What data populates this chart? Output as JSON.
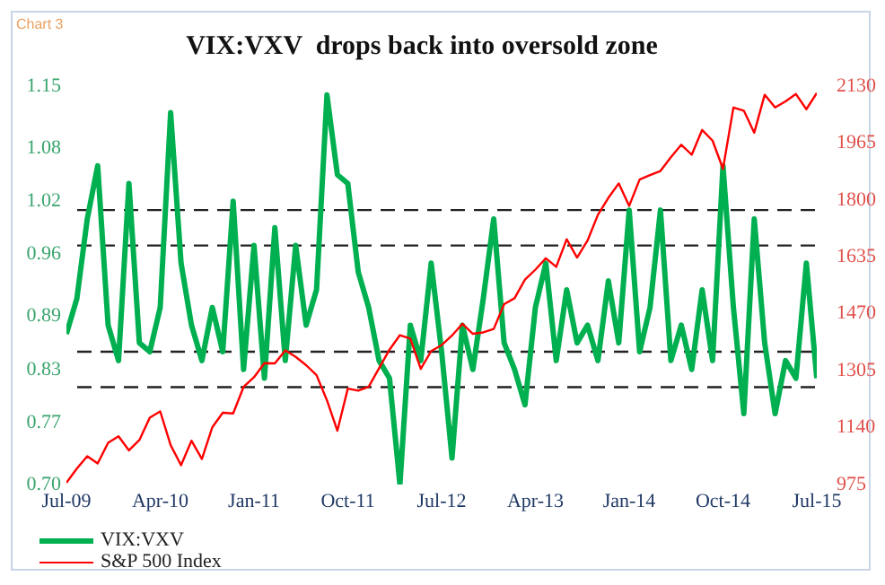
{
  "chart_data": {
    "type": "line",
    "title": "VIX:VXV  drops back into oversold zone",
    "annotations": [
      "Chart 3"
    ],
    "x": [
      "2009-07",
      "2009-08",
      "2009-09",
      "2009-10",
      "2009-11",
      "2009-12",
      "2010-01",
      "2010-02",
      "2010-03",
      "2010-04",
      "2010-05",
      "2010-06",
      "2010-07",
      "2010-08",
      "2010-09",
      "2010-10",
      "2010-11",
      "2010-12",
      "2011-01",
      "2011-02",
      "2011-03",
      "2011-04",
      "2011-05",
      "2011-06",
      "2011-07",
      "2011-08",
      "2011-09",
      "2011-10",
      "2011-11",
      "2011-12",
      "2012-01",
      "2012-02",
      "2012-03",
      "2012-04",
      "2012-05",
      "2012-06",
      "2012-07",
      "2012-08",
      "2012-09",
      "2012-10",
      "2012-11",
      "2012-12",
      "2013-01",
      "2013-02",
      "2013-03",
      "2013-04",
      "2013-05",
      "2013-06",
      "2013-07",
      "2013-08",
      "2013-09",
      "2013-10",
      "2013-11",
      "2013-12",
      "2014-01",
      "2014-02",
      "2014-03",
      "2014-04",
      "2014-05",
      "2014-06",
      "2014-07",
      "2014-08",
      "2014-09",
      "2014-10",
      "2014-11",
      "2014-12",
      "2015-01",
      "2015-02",
      "2015-03",
      "2015-04",
      "2015-05",
      "2015-06",
      "2015-07"
    ],
    "series": [
      {
        "name": "VIX:VXV",
        "color": "#00b050",
        "values": [
          0.87,
          0.91,
          1.0,
          1.06,
          0.88,
          0.84,
          1.04,
          0.86,
          0.85,
          0.9,
          1.12,
          0.95,
          0.88,
          0.84,
          0.9,
          0.85,
          1.02,
          0.83,
          0.97,
          0.82,
          0.99,
          0.84,
          0.97,
          0.88,
          0.92,
          1.14,
          1.05,
          1.04,
          0.94,
          0.9,
          0.84,
          0.82,
          0.7,
          0.88,
          0.84,
          0.95,
          0.85,
          0.73,
          0.88,
          0.83,
          0.91,
          1.0,
          0.86,
          0.83,
          0.79,
          0.9,
          0.95,
          0.84,
          0.92,
          0.86,
          0.88,
          0.84,
          0.93,
          0.86,
          1.01,
          0.85,
          0.9,
          1.01,
          0.84,
          0.88,
          0.83,
          0.92,
          0.84,
          1.06,
          0.9,
          0.78,
          1.0,
          0.86,
          0.78,
          0.84,
          0.82,
          0.95,
          0.82
        ]
      },
      {
        "name": "S&P 500 Index",
        "color": "#ff0000",
        "axis": "y2",
        "values": [
          980,
          1021,
          1057,
          1036,
          1096,
          1115,
          1074,
          1104,
          1169,
          1187,
          1089,
          1031,
          1102,
          1049,
          1141,
          1183,
          1181,
          1258,
          1286,
          1327,
          1326,
          1364,
          1345,
          1321,
          1292,
          1219,
          1131,
          1253,
          1247,
          1258,
          1312,
          1366,
          1408,
          1398,
          1310,
          1362,
          1379,
          1407,
          1441,
          1412,
          1416,
          1426,
          1498,
          1515,
          1569,
          1598,
          1631,
          1606,
          1686,
          1633,
          1682,
          1757,
          1806,
          1848,
          1783,
          1859,
          1872,
          1884,
          1924,
          1960,
          1931,
          2003,
          1972,
          1890,
          2068,
          2059,
          1995,
          2105,
          2068,
          2086,
          2107,
          2063,
          2110
        ]
      }
    ],
    "xlim": [
      "2009-07",
      "2015-07"
    ],
    "xticks": [
      {
        "value": "2009-07",
        "label": "Jul-09"
      },
      {
        "value": "2010-04",
        "label": "Apr-10"
      },
      {
        "value": "2011-01",
        "label": "Jan-11"
      },
      {
        "value": "2011-10",
        "label": "Oct-11"
      },
      {
        "value": "2012-07",
        "label": "Jul-12"
      },
      {
        "value": "2013-04",
        "label": "Apr-13"
      },
      {
        "value": "2014-01",
        "label": "Jan-14"
      },
      {
        "value": "2014-10",
        "label": "Oct-14"
      },
      {
        "value": "2015-07",
        "label": "Jul-15"
      }
    ],
    "ylim": [
      0.7,
      1.15
    ],
    "yticks": [
      {
        "value": 0.7,
        "label": "0.70"
      },
      {
        "value": 0.77,
        "label": "0.77"
      },
      {
        "value": 0.83,
        "label": "0.83"
      },
      {
        "value": 0.89,
        "label": "0.89"
      },
      {
        "value": 0.96,
        "label": "0.96"
      },
      {
        "value": 1.02,
        "label": "1.02"
      },
      {
        "value": 1.08,
        "label": "1.08"
      },
      {
        "value": 1.15,
        "label": "1.15"
      }
    ],
    "y2lim": [
      975,
      2130
    ],
    "y2ticks": [
      975,
      1140,
      1305,
      1470,
      1635,
      1800,
      1965,
      2130
    ],
    "ref_lines": [
      {
        "axis": "y",
        "value": 1.01,
        "line_style": "dashed"
      },
      {
        "axis": "y",
        "value": 0.97,
        "line_style": "dashed"
      },
      {
        "axis": "y",
        "value": 0.85,
        "line_style": "dashed"
      },
      {
        "axis": "y",
        "value": 0.81,
        "line_style": "dashed"
      }
    ],
    "legend": "bottom left",
    "marker": "none",
    "line_style": "solid"
  }
}
